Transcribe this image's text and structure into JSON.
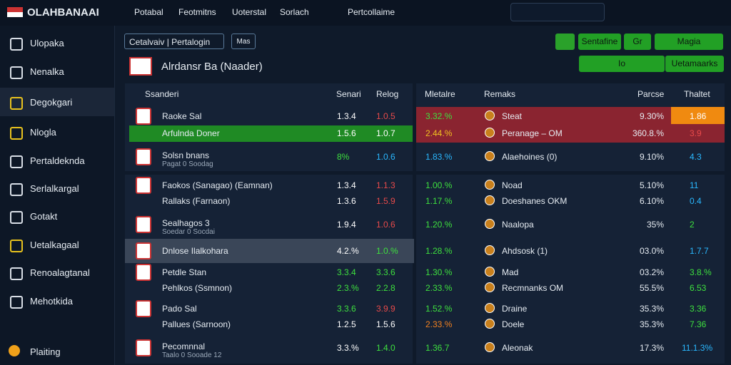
{
  "header": {
    "brand": "OLAHBANAAI",
    "nav": [
      "Potabal",
      "Feotmitns",
      "Uoterstal",
      "Sorlach",
      "Pertcollaime"
    ]
  },
  "sidebar": {
    "items": [
      "Ulopaka",
      "Nenalka",
      "Degokgari",
      "Nlogla",
      "Pertaldeknda",
      "Serlalkargal",
      "Gotakt",
      "Uetalkagaal",
      "Renoalagtanal",
      "Mehotkida"
    ],
    "footer": "Plaiting"
  },
  "tabs": [
    "Cetalvaiv | Pertalogin",
    "Mas"
  ],
  "buttons": [
    "Sentafine",
    "Gr",
    "Magia",
    "Io",
    "Uetamaarks"
  ],
  "title": "Alrdansr Ba (Naader)",
  "table": {
    "left_headers": [
      "Ssanderi",
      "Senari",
      "Relog"
    ],
    "right_headers": [
      "Mletalre",
      "Remaks",
      "Parcse",
      "Thaltet"
    ],
    "rows": [
      {
        "name": "Raoke Sal",
        "a": "1.3.4",
        "b": "1.0.5",
        "pct": "3.32.%",
        "match": "Steat",
        "pct2": "9.30%",
        "odd": "1.86"
      },
      {
        "name": "Arfulnda Doner",
        "a": "1.5.6",
        "b": "1.0.7",
        "pct": "2.44.%",
        "match": "Peranage – OM",
        "pct2": "360.8.%",
        "odd": "3.9"
      },
      {
        "name": "Solsn bnans",
        "sub": "Pagat 0 Soodag",
        "a": "8%",
        "b": "1.0.6",
        "pct": "1.83.%",
        "match": "Alaehoines (0)",
        "pct2": "9.10%",
        "odd": "4.3"
      },
      {
        "name": "Faokos (Sanagao) (Eamnan)",
        "a": "1.3.4",
        "b": "1.1.3",
        "pct": "1.00.%",
        "match": "Noad",
        "pct2": "5.10%",
        "odd": "11"
      },
      {
        "name": "Rallaks (Farnaon)",
        "a": "1.3.6",
        "b": "1.5.9",
        "pct": "1.17.%",
        "match": "Doeshanes OKM",
        "pct2": "6.10%",
        "odd": "0.4"
      },
      {
        "name": "Sealhagos 3",
        "sub": "Soedar 0 Socdai",
        "a": "1.9.4",
        "b": "1.0.6",
        "pct": "1.20.%",
        "match": "Naalopa",
        "pct2": "35%",
        "odd": "2"
      },
      {
        "name": "Dnlose Ilalkohara",
        "a": "4.2.%",
        "b": "1.0.%",
        "pct": "1.28.%",
        "match": "Ahdsosk (1)",
        "pct2": "03.0%",
        "odd": "1.7.7"
      },
      {
        "name": "Petdle Stan",
        "a": "3.3.4",
        "b": "3.3.6",
        "pct": "1.30.%",
        "match": "Mad",
        "pct2": "03.2%",
        "odd": "3.8.%"
      },
      {
        "name": "Pehlkos (Ssmnon)",
        "a": "2.3.%",
        "b": "2.2.8",
        "pct": "2.33.%",
        "match": "Recmnanks OM",
        "pct2": "55.5%",
        "odd": "6.53"
      },
      {
        "name": "Pado Sal",
        "a": "3.3.6",
        "b": "3.9.9",
        "pct": "1.52.%",
        "match": "Draine",
        "pct2": "35.3%",
        "odd": "3.36"
      },
      {
        "name": "Pallues (Sarnoon)",
        "a": "1.2.5",
        "b": "1.5.6",
        "pct": "2.33.%",
        "match": "Doele",
        "pct2": "35.3%",
        "odd": "7.36"
      },
      {
        "name": "Pecomnnal",
        "sub": "Taalo 0 Sooade 12",
        "a": "3.3.%",
        "b": "1.4.0",
        "pct": "1.36.7",
        "match": "Aleonak",
        "pct2": "17.3%",
        "odd": "11.1.3%"
      }
    ]
  }
}
